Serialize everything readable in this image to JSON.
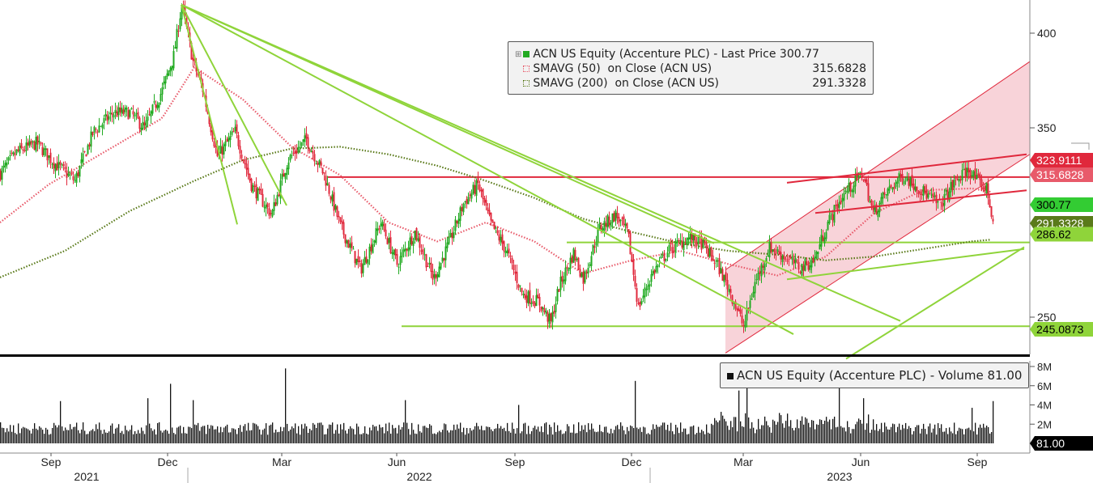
{
  "chart_data": {
    "type": "candlestick",
    "price_panel": {
      "y_ticks": [
        250,
        350,
        400
      ],
      "ylim": [
        227,
        418
      ],
      "series": [
        {
          "name": "ACN US Equity (Accenture PLC) - Last Price",
          "value": "300.77",
          "color": "#22aa22"
        },
        {
          "name": "SMAVG (50)  on Close (ACN US)",
          "value": "315.6828",
          "color": "#e85a6a"
        },
        {
          "name": "SMAVG (200)  on Close (ACN US)",
          "value": "291.3328",
          "color": "#5a7a1a"
        }
      ],
      "price_labels": [
        {
          "id": "resistance",
          "text": "323.9111",
          "bg": "#e0283c",
          "fg": "#ffffff"
        },
        {
          "id": "sma50",
          "text": "315.6828",
          "bg": "#e85a6a",
          "fg": "#ffffff"
        },
        {
          "id": "last",
          "text": "300.77",
          "bg": "#33cc33",
          "fg": "#000000"
        },
        {
          "id": "sma200",
          "text": "291.3328",
          "bg": "#5a7a1a",
          "fg": "#ffffff"
        },
        {
          "id": "level286",
          "text": "286.62",
          "bg": "#8fd43a",
          "fg": "#000000"
        },
        {
          "id": "level245",
          "text": "245.0873",
          "bg": "#8fd43a",
          "fg": "#000000"
        }
      ],
      "price_path": [
        {
          "t": 0,
          "v": 326
        },
        {
          "t": 20,
          "v": 337
        },
        {
          "t": 45,
          "v": 342
        },
        {
          "t": 65,
          "v": 332
        },
        {
          "t": 92,
          "v": 322
        },
        {
          "t": 115,
          "v": 348
        },
        {
          "t": 140,
          "v": 358
        },
        {
          "t": 160,
          "v": 358
        },
        {
          "t": 178,
          "v": 350
        },
        {
          "t": 200,
          "v": 370
        },
        {
          "t": 214,
          "v": 388
        },
        {
          "t": 224,
          "v": 415
        },
        {
          "t": 238,
          "v": 385
        },
        {
          "t": 250,
          "v": 370
        },
        {
          "t": 268,
          "v": 335
        },
        {
          "t": 290,
          "v": 348
        },
        {
          "t": 310,
          "v": 320
        },
        {
          "t": 335,
          "v": 304
        },
        {
          "t": 355,
          "v": 333
        },
        {
          "t": 378,
          "v": 344
        },
        {
          "t": 400,
          "v": 325
        },
        {
          "t": 420,
          "v": 298
        },
        {
          "t": 445,
          "v": 275
        },
        {
          "t": 470,
          "v": 300
        },
        {
          "t": 490,
          "v": 278
        },
        {
          "t": 512,
          "v": 295
        },
        {
          "t": 535,
          "v": 270
        },
        {
          "t": 555,
          "v": 290
        },
        {
          "t": 572,
          "v": 310
        },
        {
          "t": 590,
          "v": 320
        },
        {
          "t": 605,
          "v": 300
        },
        {
          "t": 625,
          "v": 285
        },
        {
          "t": 645,
          "v": 262
        },
        {
          "t": 665,
          "v": 258
        },
        {
          "t": 680,
          "v": 247
        },
        {
          "t": 690,
          "v": 266
        },
        {
          "t": 708,
          "v": 284
        },
        {
          "t": 720,
          "v": 270
        },
        {
          "t": 740,
          "v": 297
        },
        {
          "t": 760,
          "v": 304
        },
        {
          "t": 775,
          "v": 294
        },
        {
          "t": 788,
          "v": 255
        },
        {
          "t": 805,
          "v": 273
        },
        {
          "t": 825,
          "v": 285
        },
        {
          "t": 850,
          "v": 292
        },
        {
          "t": 866,
          "v": 289
        },
        {
          "t": 885,
          "v": 278
        },
        {
          "t": 900,
          "v": 265
        },
        {
          "t": 918,
          "v": 245
        },
        {
          "t": 932,
          "v": 268
        },
        {
          "t": 950,
          "v": 287
        },
        {
          "t": 968,
          "v": 282
        },
        {
          "t": 988,
          "v": 276
        },
        {
          "t": 1005,
          "v": 280
        },
        {
          "t": 1022,
          "v": 300
        },
        {
          "t": 1042,
          "v": 315
        },
        {
          "t": 1065,
          "v": 326
        },
        {
          "t": 1078,
          "v": 305
        },
        {
          "t": 1095,
          "v": 316
        },
        {
          "t": 1115,
          "v": 325
        },
        {
          "t": 1135,
          "v": 318
        },
        {
          "t": 1160,
          "v": 309
        },
        {
          "t": 1180,
          "v": 322
        },
        {
          "t": 1196,
          "v": 328
        },
        {
          "t": 1210,
          "v": 320
        },
        {
          "t": 1218,
          "v": 318
        },
        {
          "t": 1226,
          "v": 301
        }
      ],
      "sma50_path": [
        {
          "t": 0,
          "v": 300
        },
        {
          "t": 60,
          "v": 320
        },
        {
          "t": 140,
          "v": 340
        },
        {
          "t": 200,
          "v": 355
        },
        {
          "t": 240,
          "v": 382
        },
        {
          "t": 300,
          "v": 365
        },
        {
          "t": 360,
          "v": 340
        },
        {
          "t": 420,
          "v": 325
        },
        {
          "t": 480,
          "v": 300
        },
        {
          "t": 540,
          "v": 290
        },
        {
          "t": 600,
          "v": 300
        },
        {
          "t": 660,
          "v": 290
        },
        {
          "t": 720,
          "v": 273
        },
        {
          "t": 780,
          "v": 280
        },
        {
          "t": 840,
          "v": 285
        },
        {
          "t": 900,
          "v": 278
        },
        {
          "t": 960,
          "v": 272
        },
        {
          "t": 1020,
          "v": 282
        },
        {
          "t": 1080,
          "v": 305
        },
        {
          "t": 1140,
          "v": 317
        },
        {
          "t": 1200,
          "v": 318
        },
        {
          "t": 1226,
          "v": 316
        }
      ],
      "sma200_path": [
        {
          "t": 0,
          "v": 271
        },
        {
          "t": 80,
          "v": 285
        },
        {
          "t": 160,
          "v": 306
        },
        {
          "t": 240,
          "v": 322
        },
        {
          "t": 300,
          "v": 333
        },
        {
          "t": 360,
          "v": 339
        },
        {
          "t": 420,
          "v": 340
        },
        {
          "t": 480,
          "v": 336
        },
        {
          "t": 540,
          "v": 330
        },
        {
          "t": 600,
          "v": 322
        },
        {
          "t": 660,
          "v": 313
        },
        {
          "t": 720,
          "v": 302
        },
        {
          "t": 780,
          "v": 295
        },
        {
          "t": 840,
          "v": 289
        },
        {
          "t": 900,
          "v": 285
        },
        {
          "t": 960,
          "v": 283
        },
        {
          "t": 1020,
          "v": 280
        },
        {
          "t": 1080,
          "v": 282
        },
        {
          "t": 1140,
          "v": 286
        },
        {
          "t": 1200,
          "v": 290
        },
        {
          "t": 1226,
          "v": 291
        }
      ]
    },
    "volume_panel": {
      "title": "ACN US Equity (Accenture PLC) - Volume 81.00",
      "y_ticks": [
        "2M",
        "4M",
        "6M",
        "8M"
      ],
      "y_tick_values": [
        2,
        4,
        6,
        8
      ],
      "ylim": [
        0,
        8.5
      ],
      "last_label": "81.00",
      "spikes": [
        {
          "t": 74,
          "v": 4.4
        },
        {
          "t": 182,
          "v": 4.7
        },
        {
          "t": 210,
          "v": 6.2
        },
        {
          "t": 238,
          "v": 4.5
        },
        {
          "t": 352,
          "v": 7.8
        },
        {
          "t": 500,
          "v": 4.5
        },
        {
          "t": 640,
          "v": 4.0
        },
        {
          "t": 784,
          "v": 6.5
        },
        {
          "t": 912,
          "v": 5.5
        },
        {
          "t": 922,
          "v": 6.3
        },
        {
          "t": 1036,
          "v": 5.8
        },
        {
          "t": 1066,
          "v": 4.7
        },
        {
          "t": 1200,
          "v": 3.7
        },
        {
          "t": 1226,
          "v": 4.4
        }
      ]
    },
    "x_axis": {
      "months": [
        {
          "label": "Sep",
          "t": 63
        },
        {
          "label": "Dec",
          "t": 207
        },
        {
          "label": "Mar",
          "t": 348
        },
        {
          "label": "Jun",
          "t": 490
        },
        {
          "label": "Sep",
          "t": 636
        },
        {
          "label": "Dec",
          "t": 780
        },
        {
          "label": "Mar",
          "t": 918
        },
        {
          "label": "Jun",
          "t": 1063
        },
        {
          "label": "Sep",
          "t": 1207
        }
      ],
      "years": [
        {
          "label": "2021",
          "t": 107
        },
        {
          "label": "2022",
          "t": 518
        },
        {
          "label": "2023",
          "t": 1037
        }
      ],
      "year_breaks": [
        232,
        803
      ]
    },
    "annotations": {
      "horizontal_levels": [
        {
          "value": 324,
          "from_t": 405,
          "color": "#e0283c"
        },
        {
          "value": 289.5,
          "from_t": 700,
          "color": "#8fd43a"
        },
        {
          "value": 245.2,
          "from_t": 496,
          "color": "#8fd43a"
        }
      ],
      "trendlines": [
        {
          "p1": [
            224,
            415
          ],
          "p2": [
            293,
            299
          ],
          "color": "#8fd43a"
        },
        {
          "p1": [
            224,
            415
          ],
          "p2": [
            354,
            309
          ],
          "color": "#8fd43a"
        },
        {
          "p1": [
            224,
            415
          ],
          "p2": [
            980,
            241
          ],
          "color": "#8fd43a"
        },
        {
          "p1": [
            224,
            415
          ],
          "p2": [
            1112,
            248
          ],
          "color": "#8fd43a"
        },
        {
          "p1": [
            224,
            415
          ],
          "p2": [
            882,
            289
          ],
          "color": "#8fd43a"
        },
        {
          "p1": [
            972,
            270
          ],
          "p2": [
            1265,
            286
          ],
          "color": "#8fd43a"
        },
        {
          "p1": [
            1045,
            228
          ],
          "p2": [
            1265,
            287
          ],
          "color": "#8fd43a"
        },
        {
          "p1": [
            972,
            321
          ],
          "p2": [
            1268,
            336
          ],
          "color": "#e0283c"
        },
        {
          "p1": [
            1007,
            305
          ],
          "p2": [
            1268,
            317
          ],
          "color": "#e0283c"
        }
      ],
      "channel": {
        "lower_start": [
          896,
          231
        ],
        "lower_end": [
          1272,
          336
        ],
        "upper_start": [
          896,
          275
        ],
        "upper_end": [
          1272,
          385
        ],
        "color": "#f7cbd2",
        "line": "#e0283c"
      }
    }
  }
}
